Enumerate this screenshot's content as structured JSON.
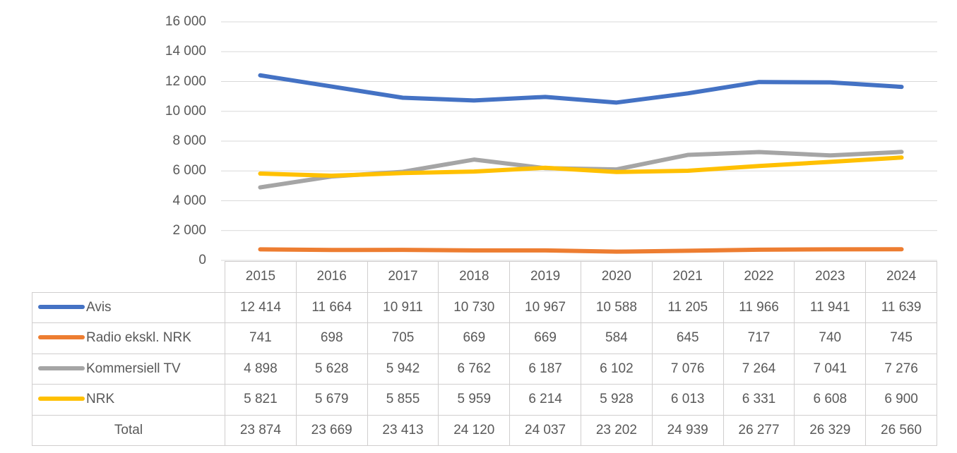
{
  "chart_data": {
    "type": "line",
    "title": "",
    "xlabel": "",
    "ylabel": "",
    "categories": [
      "2015",
      "2016",
      "2017",
      "2018",
      "2019",
      "2020",
      "2021",
      "2022",
      "2023",
      "2024"
    ],
    "series": [
      {
        "name": "Avis",
        "color": "#4472C4",
        "values": [
          12414,
          11664,
          10911,
          10730,
          10967,
          10588,
          11205,
          11966,
          11941,
          11639
        ]
      },
      {
        "name": "Radio ekskl. NRK",
        "color": "#ED7D31",
        "values": [
          741,
          698,
          705,
          669,
          669,
          584,
          645,
          717,
          740,
          745
        ]
      },
      {
        "name": "Kommersiell TV",
        "color": "#A5A5A5",
        "values": [
          4898,
          5628,
          5942,
          6762,
          6187,
          6102,
          7076,
          7264,
          7041,
          7276
        ]
      },
      {
        "name": "NRK",
        "color": "#FFC000",
        "values": [
          5821,
          5679,
          5855,
          5959,
          6214,
          5928,
          6013,
          6331,
          6608,
          6900
        ]
      }
    ],
    "totals": {
      "label": "Total",
      "values": [
        23874,
        23669,
        23413,
        24120,
        24037,
        23202,
        24939,
        26277,
        26329,
        26560
      ]
    },
    "ylim": [
      0,
      16000
    ],
    "y_ticks": [
      0,
      2000,
      4000,
      6000,
      8000,
      10000,
      12000,
      14000,
      16000
    ],
    "y_tick_labels": [
      "0",
      "2 000",
      "4 000",
      "6 000",
      "8 000",
      "10 000",
      "12 000",
      "14 000",
      "16 000"
    ],
    "grid": "horizontal",
    "gridline_color": "#D9D9D9",
    "legend_position": "data-table-left",
    "colors": {
      "text": "#595959",
      "table_border": "#D0CECE"
    },
    "number_format": "space-thousands"
  }
}
